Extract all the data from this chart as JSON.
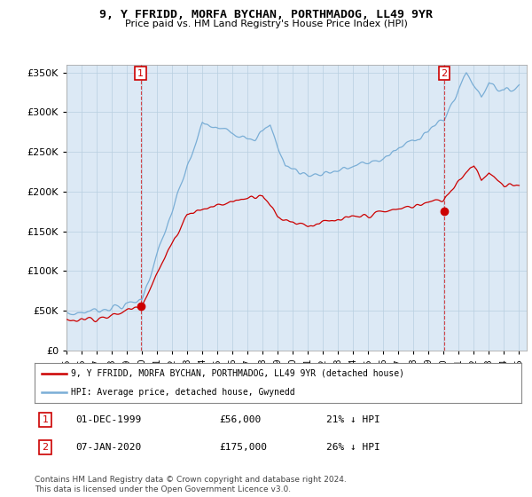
{
  "title": "9, Y FFRIDD, MORFA BYCHAN, PORTHMADOG, LL49 9YR",
  "subtitle": "Price paid vs. HM Land Registry's House Price Index (HPI)",
  "legend_label_red": "9, Y FFRIDD, MORFA BYCHAN, PORTHMADOG, LL49 9YR (detached house)",
  "legend_label_blue": "HPI: Average price, detached house, Gwynedd",
  "annotation1_date": "01-DEC-1999",
  "annotation1_price": "£56,000",
  "annotation1_hpi": "21% ↓ HPI",
  "annotation2_date": "07-JAN-2020",
  "annotation2_price": "£175,000",
  "annotation2_hpi": "26% ↓ HPI",
  "copyright": "Contains HM Land Registry data © Crown copyright and database right 2024.\nThis data is licensed under the Open Government Licence v3.0.",
  "ylim": [
    0,
    360000
  ],
  "yticks": [
    0,
    50000,
    100000,
    150000,
    200000,
    250000,
    300000,
    350000
  ],
  "red_color": "#cc0000",
  "blue_color": "#7aaed6",
  "plot_bg_color": "#dce9f5",
  "background_color": "#ffffff",
  "grid_color": "#b8cfe0",
  "purchase1_year": 1999.92,
  "purchase1_value": 56000,
  "purchase2_year": 2020.04,
  "purchase2_value": 175000,
  "xmin": 1995,
  "xmax": 2025.5
}
